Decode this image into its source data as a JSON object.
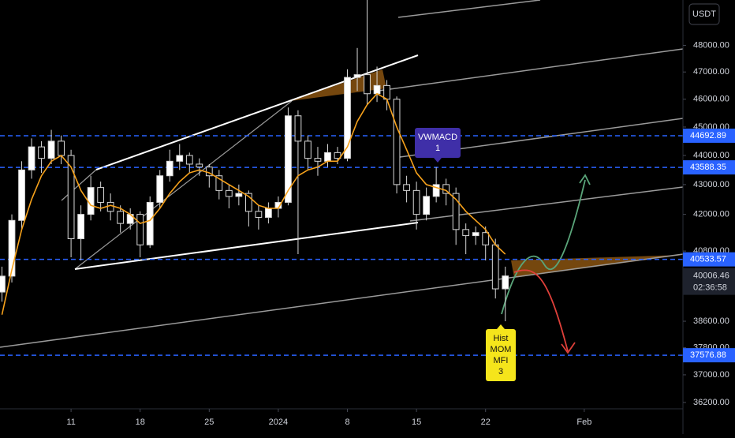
{
  "chart_data": {
    "type": "candlestick",
    "currency": "USDT",
    "log_scale": true,
    "x": [
      4,
      5,
      6,
      7,
      8,
      9,
      10,
      11,
      12,
      13,
      14,
      15,
      16,
      17,
      18,
      19,
      20,
      21,
      22,
      23,
      24,
      25,
      26,
      27,
      28,
      29,
      30,
      31,
      32,
      33,
      34,
      35,
      36,
      37,
      38,
      39,
      40,
      41,
      42,
      43,
      44,
      45,
      46,
      47,
      48,
      49,
      50,
      51,
      52,
      53,
      54,
      55
    ],
    "open": [
      39500,
      40000,
      41800,
      43500,
      44300,
      43900,
      44500,
      44000,
      41200,
      42000,
      42900,
      42400,
      42100,
      41700,
      42000,
      41000,
      42400,
      43300,
      43800,
      44000,
      43700,
      43600,
      43300,
      42800,
      42600,
      42700,
      42100,
      41900,
      42200,
      42400,
      45400,
      44500,
      43900,
      43800,
      44100,
      43900,
      46800,
      46900,
      46200,
      46500,
      46000,
      43000,
      42800,
      42000,
      42600,
      43000,
      42700,
      41500,
      41300,
      41400,
      41000,
      39600
    ],
    "high": [
      40300,
      42000,
      43800,
      44600,
      44500,
      44900,
      44700,
      44200,
      42300,
      43300,
      43100,
      42700,
      42300,
      42200,
      42100,
      42600,
      43500,
      44200,
      44400,
      44100,
      43900,
      43700,
      43500,
      43000,
      43000,
      42800,
      42300,
      42400,
      42600,
      45700,
      45600,
      44700,
      44300,
      44400,
      44300,
      47100,
      47900,
      49800,
      47200,
      46700,
      46100,
      43300,
      43100,
      42900,
      43600,
      43200,
      42900,
      41700,
      41600,
      41600,
      41200,
      40300
    ],
    "low": [
      39200,
      39800,
      41500,
      43200,
      43400,
      43700,
      43700,
      40600,
      40500,
      41800,
      42100,
      41800,
      41400,
      41500,
      40600,
      40900,
      42200,
      43100,
      43500,
      43400,
      43300,
      42900,
      42500,
      42200,
      42300,
      41600,
      41500,
      41700,
      41900,
      42300,
      40700,
      43500,
      43300,
      43600,
      43700,
      43800,
      46300,
      45800,
      45900,
      45600,
      42700,
      42400,
      41500,
      41800,
      42400,
      42300,
      41000,
      40700,
      41000,
      40500,
      39300,
      38600
    ],
    "close": [
      40000,
      41800,
      43500,
      44300,
      43900,
      44500,
      44000,
      41200,
      42000,
      42900,
      42400,
      42100,
      41700,
      42000,
      41000,
      42400,
      43300,
      43800,
      44000,
      43700,
      43600,
      43300,
      42800,
      42600,
      42700,
      42100,
      41900,
      42200,
      42400,
      45400,
      44500,
      43900,
      43800,
      44100,
      43900,
      46800,
      46900,
      46200,
      46500,
      46000,
      43000,
      42800,
      42000,
      42600,
      43000,
      42700,
      41500,
      41300,
      41400,
      41000,
      39600,
      40006.46
    ],
    "up_color": "#ffffff",
    "down_color": "#000000",
    "ma": {
      "color": "#f7a21b",
      "values": [
        38800,
        40200,
        41500,
        42500,
        43300,
        43800,
        44000,
        43600,
        42800,
        42300,
        42200,
        42300,
        42200,
        42000,
        41700,
        41800,
        42200,
        42700,
        43100,
        43400,
        43500,
        43400,
        43200,
        43000,
        42800,
        42600,
        42300,
        42200,
        42200,
        42800,
        43300,
        43500,
        43600,
        43800,
        43800,
        44300,
        45200,
        45800,
        46200,
        46000,
        45000,
        44200,
        43400,
        43000,
        42900,
        42800,
        42500,
        42100,
        41800,
        41500,
        41000,
        40700
      ]
    },
    "price_lines": [
      44692.89,
      43588.35,
      40533.57,
      37576.88
    ],
    "price_line_color": "#2962ff",
    "countdown": "02:36:58",
    "annotations": [
      {
        "lines": [
          "VWMACD",
          "1"
        ],
        "color": "#3f2fa8"
      },
      {
        "lines": [
          "Hist",
          "MOM",
          "MFI",
          "3"
        ],
        "color": "#f5e51b"
      }
    ],
    "xlim": [
      3.8,
      73
    ],
    "xticks": [
      {
        "value": 11,
        "label": "11"
      },
      {
        "value": 18,
        "label": "18"
      },
      {
        "value": 25,
        "label": "25"
      },
      {
        "value": 32,
        "label": "2024"
      },
      {
        "value": 39,
        "label": "8"
      },
      {
        "value": 46,
        "label": "15"
      },
      {
        "value": 53,
        "label": "22"
      },
      {
        "value": 63,
        "label": "Feb"
      }
    ],
    "ylim": [
      36020,
      49750
    ],
    "yticks": [
      {
        "value": 48000,
        "label": "48000.00"
      },
      {
        "value": 47000,
        "label": "47000.00"
      },
      {
        "value": 46000,
        "label": "46000.00"
      },
      {
        "value": 45000,
        "label": "45000.00"
      },
      {
        "value": 44000,
        "label": "44000.00"
      },
      {
        "value": 43000,
        "label": "43000.00"
      },
      {
        "value": 42000,
        "label": "42000.00"
      },
      {
        "value": 40800,
        "label": "40800.00"
      },
      {
        "value": 38600,
        "label": "38600.00"
      },
      {
        "value": 37800,
        "label": "37800.00"
      },
      {
        "value": 37000,
        "label": "37000.00"
      },
      {
        "value": 36200,
        "label": "36200.00"
      }
    ]
  }
}
